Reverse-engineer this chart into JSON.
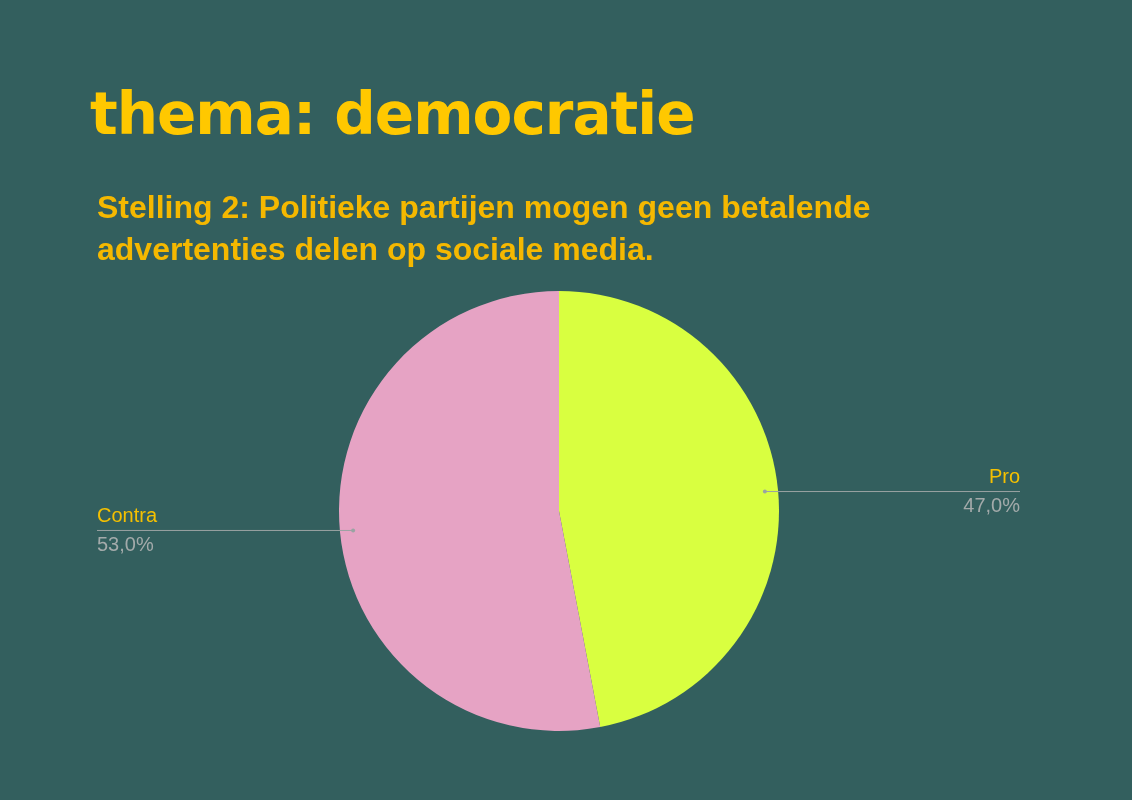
{
  "chart_data": {
    "type": "pie",
    "title": "thema: democratie",
    "subtitle": "Stelling 2: Politieke partijen mogen geen betalende advertenties delen op sociale media.",
    "categories": [
      "Pro",
      "Contra"
    ],
    "values": [
      47,
      53
    ],
    "value_labels": [
      "47,0%",
      "53,0%"
    ],
    "colors": [
      "#d9ff40",
      "#e6a3c4"
    ]
  }
}
